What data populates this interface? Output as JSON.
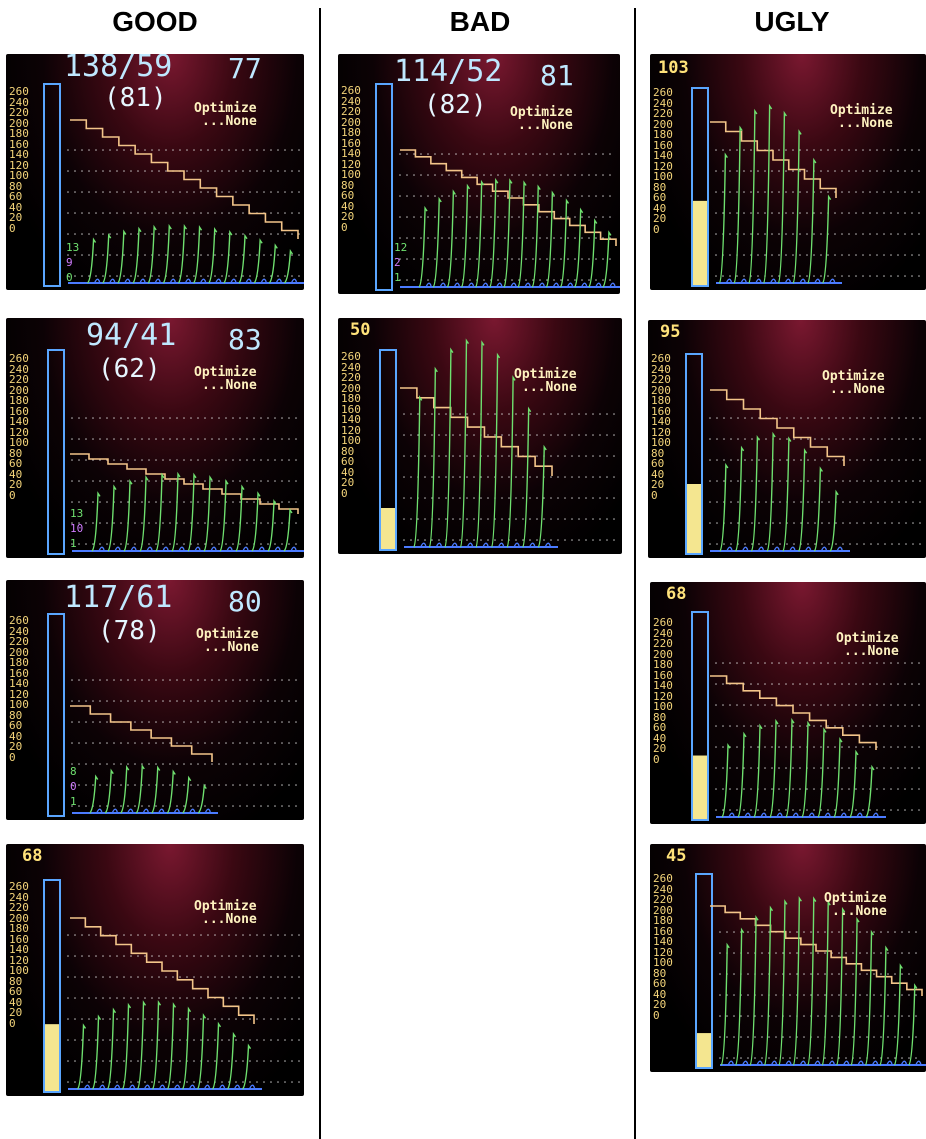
{
  "headers": {
    "good": "GOOD",
    "bad": "BAD",
    "ugly": "UGLY"
  },
  "ticks": [
    "260",
    "240",
    "220",
    "200",
    "180",
    "160",
    "140",
    "120",
    "100",
    "80",
    "60",
    "40",
    "20",
    "0"
  ],
  "optimize": {
    "line1": "Optimize",
    "line2": "...None"
  },
  "colors": {
    "bar_outline": "#5aa6ff",
    "bar_fill": "#f4e690",
    "pressure": "#f3c58a",
    "oscillation": "#6fe06f",
    "baseline": "#4b7bff",
    "grid": "#dcdcdc"
  },
  "panels": {
    "g1": {
      "bp": "138/59",
      "hr": "77",
      "mean": "(81)",
      "c1": "13",
      "c2": "9",
      "c3": "0"
    },
    "g2": {
      "bp": "94/41",
      "hr": "83",
      "mean": "(62)",
      "c1": "13",
      "c2": "10",
      "c3": "1"
    },
    "g3": {
      "bp": "117/61",
      "hr": "80",
      "mean": "(78)",
      "c1": "8",
      "c2": "0",
      "c3": "1"
    },
    "g4": {
      "pulse": "68"
    },
    "b1": {
      "bp": "114/52",
      "hr": "81",
      "mean": "(82)",
      "c1": "12",
      "c2": "2",
      "c3": "1"
    },
    "b2": {
      "pulse": "50"
    },
    "u1": {
      "pulse": "103"
    },
    "u2": {
      "pulse": "95"
    },
    "u3": {
      "pulse": "68"
    },
    "u4": {
      "pulse": "45"
    }
  }
}
